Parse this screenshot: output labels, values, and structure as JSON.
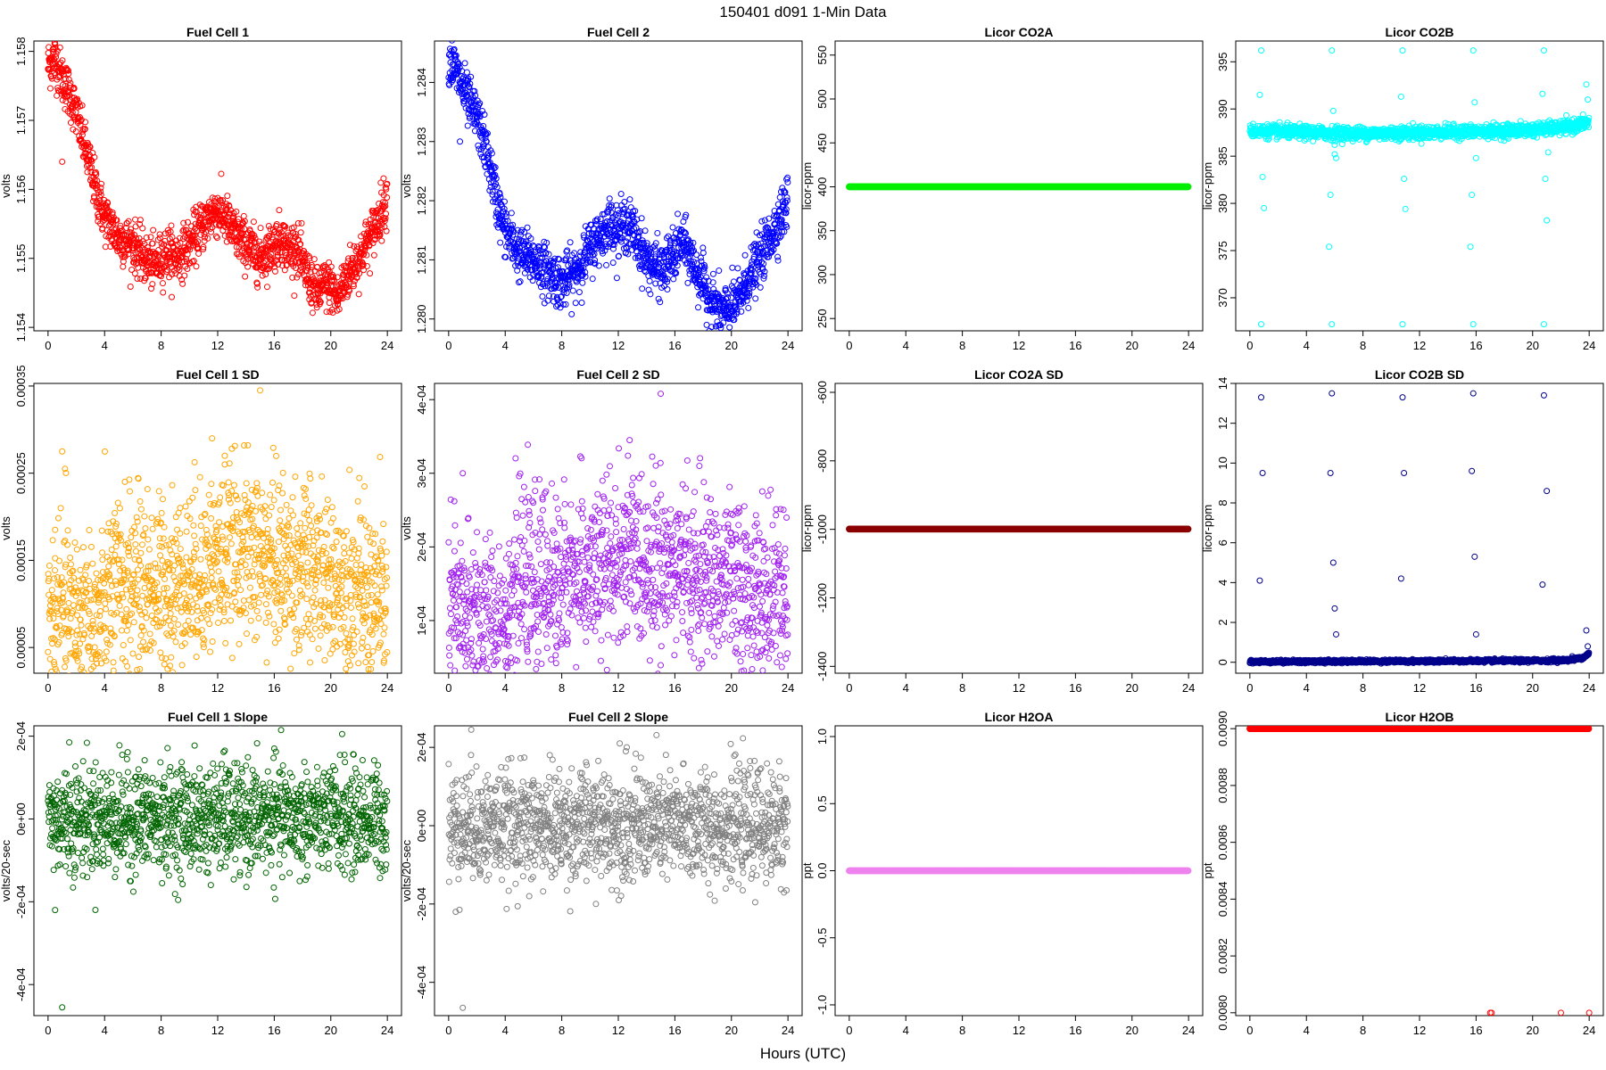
{
  "figure": {
    "title": "150401    d091    1-Min Data",
    "xlabel": "Hours (UTC)"
  },
  "chart_data": [
    {
      "type": "scatter",
      "title": "Fuel Cell 1",
      "ylabel": "volts",
      "xlabel": "",
      "color": "#ff0000",
      "xlim": [
        -1,
        25
      ],
      "ylim": [
        1.15395,
        1.15815
      ],
      "xticks": [
        0,
        4,
        8,
        12,
        16,
        20,
        24
      ],
      "yticks": [
        1.154,
        1.155,
        1.156,
        1.157,
        1.158
      ],
      "ytick_labels": [
        "1.154",
        "1.155",
        "1.156",
        "1.157",
        "1.158"
      ],
      "series": [
        {
          "x": [
            0,
            0.5,
            1,
            1.5,
            2,
            2.5,
            3,
            3.5,
            4,
            5,
            6,
            6.8,
            7.5,
            8,
            8.5,
            9,
            10,
            11,
            11.8,
            12.5,
            13,
            14,
            15,
            15.5,
            16,
            16.5,
            17,
            17.5,
            18,
            18.5,
            19,
            19.5,
            20,
            20.5,
            21,
            22,
            23,
            24
          ],
          "y": [
            1.1578,
            1.1579,
            1.1576,
            1.1574,
            1.1571,
            1.1567,
            1.1563,
            1.1559,
            1.1556,
            1.1553,
            1.1552,
            1.155,
            1.1549,
            1.155,
            1.1551,
            1.155,
            1.1552,
            1.1555,
            1.1557,
            1.1556,
            1.1554,
            1.1552,
            1.155,
            1.1551,
            1.1552,
            1.1553,
            1.1551,
            1.1552,
            1.1549,
            1.1547,
            1.1545,
            1.1546,
            1.1546,
            1.1544,
            1.1547,
            1.155,
            1.1554,
            1.1559
          ],
          "spread": 0.00018,
          "outliers": [
            [
              1,
              1.1564
            ]
          ]
        }
      ]
    },
    {
      "type": "scatter",
      "title": "Fuel Cell 2",
      "ylabel": "volts",
      "xlabel": "",
      "color": "#0000ff",
      "xlim": [
        -1,
        25
      ],
      "ylim": [
        1.2798,
        1.2847
      ],
      "xticks": [
        0,
        4,
        8,
        12,
        16,
        20,
        24
      ],
      "yticks": [
        1.28,
        1.281,
        1.282,
        1.283,
        1.284
      ],
      "ytick_labels": [
        "1.280",
        "1.281",
        "1.282",
        "1.283",
        "1.284"
      ],
      "series": [
        {
          "x": [
            0,
            0.5,
            1,
            1.5,
            2,
            2.5,
            3,
            3.5,
            4,
            5,
            6,
            7,
            7.5,
            8,
            9,
            10,
            11,
            11.5,
            12,
            12.5,
            13,
            14,
            15,
            16,
            16.5,
            17,
            17.5,
            18,
            18.5,
            19,
            19.5,
            20,
            20.5,
            21,
            22,
            23,
            24
          ],
          "y": [
            1.2844,
            1.2842,
            1.2839,
            1.2836,
            1.2834,
            1.283,
            1.2825,
            1.2819,
            1.2815,
            1.2811,
            1.281,
            1.2808,
            1.2807,
            1.2806,
            1.2808,
            1.2812,
            1.2815,
            1.2816,
            1.2815,
            1.2816,
            1.2815,
            1.281,
            1.2808,
            1.2811,
            1.2813,
            1.2811,
            1.2808,
            1.2806,
            1.2803,
            1.2802,
            1.2801,
            1.2802,
            1.2803,
            1.2806,
            1.281,
            1.2815,
            1.282
          ],
          "spread": 0.00022,
          "outliers": [
            [
              0.8,
              1.283
            ]
          ]
        }
      ]
    },
    {
      "type": "scatter",
      "title": "Licor CO2A",
      "ylabel": "licor-ppm",
      "xlabel": "",
      "color": "#00ee00",
      "xlim": [
        -1,
        25
      ],
      "ylim": [
        236,
        566
      ],
      "xticks": [
        0,
        4,
        8,
        12,
        16,
        20,
        24
      ],
      "yticks": [
        250,
        300,
        350,
        400,
        450,
        500,
        550
      ],
      "ytick_labels": [
        "250",
        "300",
        "350",
        "400",
        "450",
        "500",
        "550"
      ],
      "series": [
        {
          "x": [
            0,
            24
          ],
          "y": [
            400,
            400
          ],
          "spread": 0
        }
      ]
    },
    {
      "type": "scatter",
      "title": "Licor CO2B",
      "ylabel": "licor-ppm",
      "xlabel": "",
      "color": "#00ffff",
      "xlim": [
        -1,
        25
      ],
      "ylim": [
        366.5,
        397.2
      ],
      "xticks": [
        0,
        4,
        8,
        12,
        16,
        20,
        24
      ],
      "yticks": [
        370,
        375,
        380,
        385,
        390,
        395
      ],
      "ytick_labels": [
        "370",
        "375",
        "380",
        "385",
        "390",
        "395"
      ],
      "series": [
        {
          "x": [
            0,
            4,
            8,
            12,
            16,
            20,
            22,
            23,
            24
          ],
          "y": [
            387.7,
            387.5,
            387.4,
            387.5,
            387.6,
            387.8,
            388.0,
            388.2,
            388.6
          ],
          "spread": 0.35,
          "outliers": [
            [
              0.8,
              396.2
            ],
            [
              0.8,
              367.2
            ],
            [
              0.7,
              391.5
            ],
            [
              0.9,
              382.8
            ],
            [
              1.0,
              379.5
            ],
            [
              5.8,
              396.2
            ],
            [
              5.8,
              367.2
            ],
            [
              5.6,
              375.4
            ],
            [
              5.7,
              380.9
            ],
            [
              5.9,
              389.8
            ],
            [
              6.0,
              386.2
            ],
            [
              6.1,
              384.8
            ],
            [
              6.0,
              385.2
            ],
            [
              10.8,
              396.2
            ],
            [
              10.8,
              367.2
            ],
            [
              10.7,
              391.3
            ],
            [
              10.9,
              382.6
            ],
            [
              11.0,
              379.4
            ],
            [
              15.8,
              396.2
            ],
            [
              15.8,
              367.2
            ],
            [
              15.6,
              375.4
            ],
            [
              15.7,
              380.9
            ],
            [
              15.9,
              390.7
            ],
            [
              16.0,
              384.8
            ],
            [
              20.8,
              396.2
            ],
            [
              20.8,
              367.2
            ],
            [
              20.7,
              391.6
            ],
            [
              20.9,
              382.6
            ],
            [
              21.0,
              378.2
            ],
            [
              21.1,
              385.4
            ],
            [
              23.8,
              392.6
            ],
            [
              23.9,
              391.0
            ]
          ]
        }
      ]
    },
    {
      "type": "scatter",
      "title": "Fuel Cell 1 SD",
      "ylabel": "volts",
      "xlabel": "",
      "color": "#ffa500",
      "xlim": [
        -1,
        25
      ],
      "ylim": [
        2.05e-05,
        0.000353
      ],
      "xticks": [
        0,
        4,
        8,
        12,
        16,
        20,
        24
      ],
      "yticks": [
        5e-05,
        0.00015,
        0.00025,
        0.00035
      ],
      "ytick_labels": [
        "0.00005",
        "0.00015",
        "0.00025",
        "0.00035"
      ],
      "series": [
        {
          "x": [
            0,
            2,
            3.5,
            4.5,
            6,
            8,
            10,
            12,
            13.5,
            15,
            17,
            19,
            21,
            22.5,
            24
          ],
          "y": [
            8.5e-05,
            8.5e-05,
            7.5e-05,
            0.000115,
            0.000125,
            0.00012,
            0.00013,
            0.00015,
            0.00016,
            0.000155,
            0.000145,
            0.00013,
            0.00012,
            0.00011,
            0.0001
          ],
          "spread": 5e-05,
          "outliers": [
            [
              1.0,
              0.000275
            ],
            [
              1.2,
              0.000255
            ],
            [
              15.0,
              0.000345
            ],
            [
              11.6,
              0.00029
            ],
            [
              12.5,
              0.00027
            ],
            [
              0.5,
              0.000185
            ],
            [
              2.5,
              0.000165
            ]
          ]
        }
      ]
    },
    {
      "type": "scatter",
      "title": "Fuel Cell 2 SD",
      "ylabel": "volts",
      "xlabel": "",
      "color": "#a020f0",
      "xlim": [
        -1,
        25
      ],
      "ylim": [
        2.85e-05,
        0.000422
      ],
      "xticks": [
        0,
        4,
        8,
        12,
        16,
        20,
        24
      ],
      "yticks": [
        0.0001,
        0.0002,
        0.0003,
        0.0004
      ],
      "ytick_labels": [
        "1e-04",
        "2e-04",
        "3e-04",
        "4e-04"
      ],
      "series": [
        {
          "x": [
            0,
            2,
            3.5,
            4.5,
            6,
            8,
            10,
            12,
            13.5,
            15,
            17,
            19,
            21,
            22.5,
            24
          ],
          "y": [
            0.00011,
            0.0001,
            8.5e-05,
            0.00014,
            0.00015,
            0.00015,
            0.00016,
            0.00018,
            0.000185,
            0.000175,
            0.00016,
            0.00015,
            0.000135,
            0.000125,
            0.000115
          ],
          "spread": 6e-05,
          "outliers": [
            [
              15.0,
              0.000408
            ],
            [
              1.0,
              0.0003
            ],
            [
              0.4,
              0.000262
            ],
            [
              12.8,
              0.000345
            ],
            [
              2.0,
              0.00022
            ]
          ]
        }
      ]
    },
    {
      "type": "scatter",
      "title": "Licor CO2A SD",
      "ylabel": "licor-ppm",
      "xlabel": "",
      "color": "#8b0000",
      "xlim": [
        -1,
        25
      ],
      "ylim": [
        -1420,
        -574
      ],
      "xticks": [
        0,
        4,
        8,
        12,
        16,
        20,
        24
      ],
      "yticks": [
        -1400,
        -1200,
        -1000,
        -800,
        -600
      ],
      "ytick_labels": [
        "-1400",
        "-1200",
        "-1000",
        "-800",
        "-600"
      ],
      "series": [
        {
          "x": [
            0,
            24
          ],
          "y": [
            -999,
            -999
          ],
          "spread": 0
        }
      ]
    },
    {
      "type": "scatter",
      "title": "Licor CO2B SD",
      "ylabel": "licor-ppm",
      "xlabel": "",
      "color": "#00008b",
      "xlim": [
        -1,
        25
      ],
      "ylim": [
        -0.55,
        14.0
      ],
      "xticks": [
        0,
        4,
        8,
        12,
        16,
        20,
        24
      ],
      "yticks": [
        0,
        2,
        4,
        6,
        8,
        10,
        12,
        14
      ],
      "ytick_labels": [
        "0",
        "2",
        "4",
        "6",
        "8",
        "10",
        "12",
        "14"
      ],
      "series": [
        {
          "x": [
            0,
            4,
            8,
            12,
            16,
            20,
            22,
            23,
            23.6,
            24
          ],
          "y": [
            0.03,
            0.04,
            0.05,
            0.06,
            0.07,
            0.08,
            0.1,
            0.15,
            0.25,
            0.45
          ],
          "spread": 0.04,
          "outliers": [
            [
              0.8,
              13.3
            ],
            [
              0.9,
              9.5
            ],
            [
              0.7,
              4.1
            ],
            [
              5.8,
              13.5
            ],
            [
              5.7,
              9.5
            ],
            [
              5.9,
              5.0
            ],
            [
              6.0,
              2.7
            ],
            [
              6.1,
              1.4
            ],
            [
              10.8,
              13.3
            ],
            [
              10.9,
              9.5
            ],
            [
              10.7,
              4.2
            ],
            [
              15.8,
              13.5
            ],
            [
              15.7,
              9.6
            ],
            [
              15.9,
              5.3
            ],
            [
              16.0,
              1.4
            ],
            [
              20.8,
              13.4
            ],
            [
              21.0,
              8.6
            ],
            [
              20.7,
              3.9
            ],
            [
              23.8,
              1.6
            ],
            [
              23.9,
              0.8
            ],
            [
              21.5,
              0.2
            ],
            [
              22.8,
              0.3
            ]
          ]
        }
      ]
    },
    {
      "type": "scatter",
      "title": "Fuel Cell 1 Slope",
      "ylabel": "volts/20-sec",
      "xlabel": "",
      "color": "#006400",
      "xlim": [
        -1,
        25
      ],
      "ylim": [
        -0.000475,
        0.000225
      ],
      "xticks": [
        0,
        4,
        8,
        12,
        16,
        20,
        24
      ],
      "yticks": [
        -0.0004,
        -0.0002,
        0,
        0.0002
      ],
      "ytick_labels": [
        "-4e-04",
        "-2e-04",
        "0e+00",
        "2e-04"
      ],
      "series": [
        {
          "x": [
            0,
            24
          ],
          "y": [
            0,
            0
          ],
          "spread": 6.5e-05,
          "outliers": [
            [
              1.0,
              -0.000455
            ],
            [
              0.5,
              -0.00022
            ],
            [
              1.5,
              0.000185
            ],
            [
              20.8,
              0.000205
            ],
            [
              12.5,
              0.000165
            ],
            [
              16.0,
              0.00017
            ],
            [
              5.8,
              -0.00015
            ]
          ]
        }
      ]
    },
    {
      "type": "scatter",
      "title": "Fuel Cell 2 Slope",
      "ylabel": "volts/20-sec",
      "xlabel": "",
      "color": "#808080",
      "xlim": [
        -1,
        25
      ],
      "ylim": [
        -0.000485,
        0.000255
      ],
      "xticks": [
        0,
        4,
        8,
        12,
        16,
        20,
        24
      ],
      "yticks": [
        -0.0004,
        -0.0002,
        0,
        0.0002
      ],
      "ytick_labels": [
        "-4e-04",
        "-2e-04",
        "0e+00",
        "2e-04"
      ],
      "series": [
        {
          "x": [
            0,
            24
          ],
          "y": [
            0,
            0
          ],
          "spread": 7e-05,
          "outliers": [
            [
              1.0,
              -0.000465
            ],
            [
              1.6,
              0.000245
            ],
            [
              0.5,
              -0.00022
            ],
            [
              12.1,
              0.00021
            ],
            [
              12.6,
              0.0002
            ],
            [
              5.7,
              -0.00018
            ]
          ]
        }
      ]
    },
    {
      "type": "scatter",
      "title": "Licor H2OA",
      "ylabel": "ppt",
      "xlabel": "",
      "color": "#ee82ee",
      "xlim": [
        -1,
        25
      ],
      "ylim": [
        -1.08,
        1.08
      ],
      "xticks": [
        0,
        4,
        8,
        12,
        16,
        20,
        24
      ],
      "yticks": [
        -1.0,
        -0.5,
        0.0,
        0.5,
        1.0
      ],
      "ytick_labels": [
        "-1.0",
        "-0.5",
        "0.0",
        "0.5",
        "1.0"
      ],
      "series": [
        {
          "x": [
            0,
            24
          ],
          "y": [
            0,
            0
          ],
          "spread": 0
        }
      ]
    },
    {
      "type": "scatter",
      "title": "Licor H2OB",
      "ylabel": "ppt",
      "xlabel": "",
      "color": "#ff0000",
      "xlim": [
        -1,
        25
      ],
      "ylim": [
        0.00799,
        0.00901
      ],
      "xticks": [
        0,
        4,
        8,
        12,
        16,
        20,
        24
      ],
      "yticks": [
        0.008,
        0.0082,
        0.0084,
        0.0086,
        0.0088,
        0.009
      ],
      "ytick_labels": [
        "0.0080",
        "0.0082",
        "0.0084",
        "0.0086",
        "0.0088",
        "0.0090"
      ],
      "series": [
        {
          "x": [
            0,
            24
          ],
          "y": [
            0.009,
            0.009
          ],
          "spread": 0,
          "outliers": [
            [
              17.0,
              0.008
            ],
            [
              17.1,
              0.008
            ],
            [
              22.0,
              0.008
            ],
            [
              24.0,
              0.008
            ]
          ]
        }
      ]
    }
  ]
}
